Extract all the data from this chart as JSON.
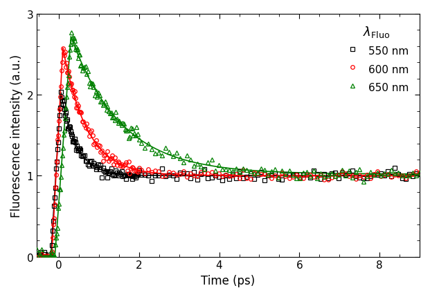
{
  "xlabel": "Time (ps)",
  "ylabel": "Fluorescence intensity (a.u.)",
  "xlim": [
    -0.55,
    9.0
  ],
  "ylim": [
    0,
    3.0
  ],
  "xticks": [
    0,
    2,
    4,
    6,
    8
  ],
  "yticks": [
    0,
    1,
    2,
    3
  ],
  "series": [
    {
      "label": "550 nm",
      "color": "black",
      "marker": "s",
      "peak_time": 0.05,
      "peak_val": 2.03,
      "rise_start": -0.2,
      "decay_tau": 0.38,
      "baseline": 1.0,
      "noise": 0.035
    },
    {
      "label": "600 nm",
      "color": "red",
      "marker": "o",
      "peak_time": 0.1,
      "peak_val": 2.58,
      "rise_start": -0.18,
      "decay_tau": 0.6,
      "baseline": 1.0,
      "noise": 0.035
    },
    {
      "label": "650 nm",
      "color": "green",
      "marker": "^",
      "peak_time": 0.3,
      "peak_val": 2.72,
      "rise_start": -0.1,
      "decay_tau": 1.25,
      "baseline": 1.02,
      "noise": 0.04
    }
  ],
  "legend_title": "$\\lambda_{\\mathrm{Fluo}}$",
  "background_color": "white",
  "marker_size": 4,
  "line_width": 1.2
}
